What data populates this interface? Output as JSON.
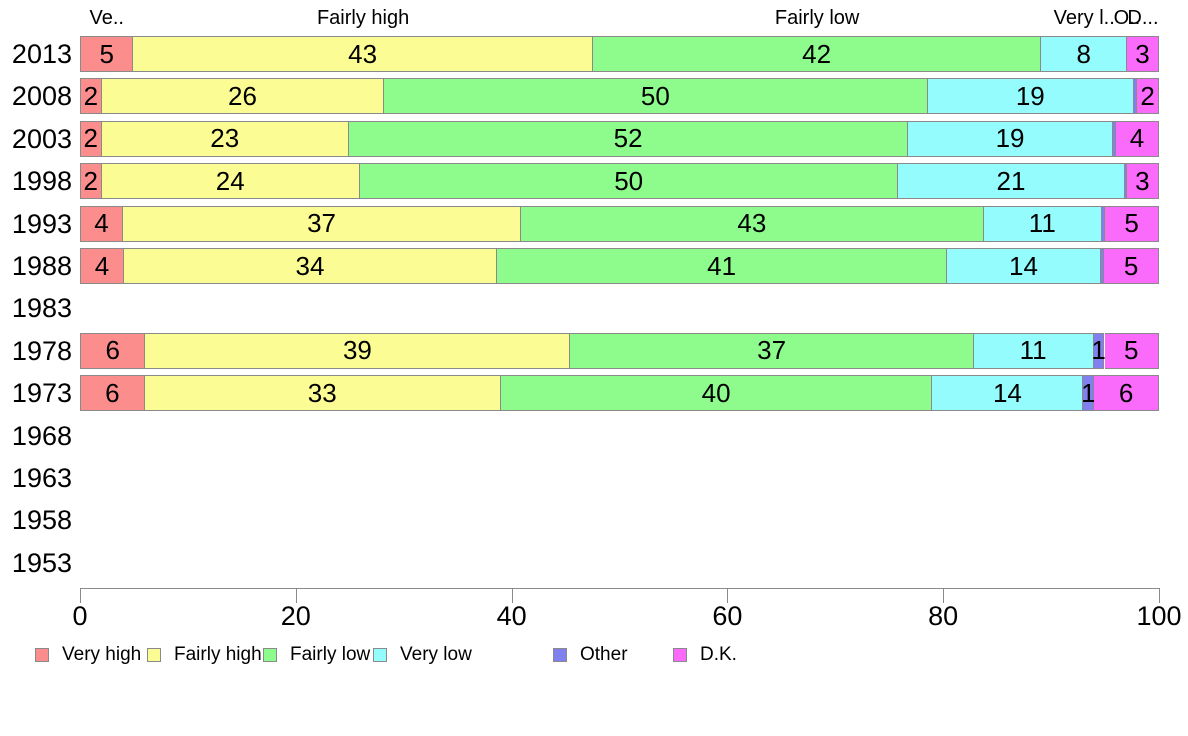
{
  "chart_data": {
    "type": "bar",
    "orientation": "horizontal",
    "stacked": true,
    "title": "",
    "xlabel": "",
    "ylabel": "",
    "x_axis": {
      "min": 0,
      "max": 100,
      "ticks": [
        "0",
        "20",
        "40",
        "60",
        "80",
        "100"
      ]
    },
    "column_header_labels": [
      "Ve..",
      "Fairly high",
      "Fairly low",
      "Very l..",
      "O..",
      "D..."
    ],
    "legend_position": "bottom",
    "legend": [
      {
        "label": "Very high",
        "color": "#FC8D8D"
      },
      {
        "label": "Fairly high",
        "color": "#FCFC94"
      },
      {
        "label": "Fairly low",
        "color": "#8DFC8D"
      },
      {
        "label": "Very low",
        "color": "#94FCFC"
      },
      {
        "label": "Other",
        "color": "#8080F0"
      },
      {
        "label": "D.K.",
        "color": "#FB6BFB"
      }
    ],
    "categories": [
      "2013",
      "2008",
      "2003",
      "1998",
      "1993",
      "1988",
      "1983",
      "1978",
      "1973",
      "1968",
      "1963",
      "1958",
      "1953"
    ],
    "rows": [
      {
        "year": "2013",
        "values": [
          5,
          43,
          42,
          8,
          0,
          3
        ],
        "labels": [
          "5",
          "43",
          "42",
          "8",
          "",
          "3"
        ]
      },
      {
        "year": "2008",
        "values": [
          2,
          26,
          50,
          19,
          0.3,
          2
        ],
        "labels": [
          "2",
          "26",
          "50",
          "19",
          "",
          "2"
        ]
      },
      {
        "year": "2003",
        "values": [
          2,
          23,
          52,
          19,
          0.3,
          4
        ],
        "labels": [
          "2",
          "23",
          "52",
          "19",
          "",
          "4"
        ]
      },
      {
        "year": "1998",
        "values": [
          2,
          24,
          50,
          21,
          0.2,
          3
        ],
        "labels": [
          "2",
          "24",
          "50",
          "21",
          "",
          "3"
        ]
      },
      {
        "year": "1993",
        "values": [
          4,
          37,
          43,
          11,
          0.3,
          5
        ],
        "labels": [
          "4",
          "37",
          "43",
          "11",
          "",
          "5"
        ]
      },
      {
        "year": "1988",
        "values": [
          4,
          34,
          41,
          14,
          0.3,
          5
        ],
        "labels": [
          "4",
          "34",
          "41",
          "14",
          "",
          "5"
        ]
      },
      {
        "year": "1983",
        "values": null,
        "labels": null
      },
      {
        "year": "1978",
        "values": [
          6,
          39,
          37,
          11,
          1,
          5
        ],
        "labels": [
          "6",
          "39",
          "37",
          "11",
          "1",
          "5"
        ]
      },
      {
        "year": "1973",
        "values": [
          6,
          33,
          40,
          14,
          1,
          6
        ],
        "labels": [
          "6",
          "33",
          "40",
          "14",
          "1",
          "6"
        ]
      },
      {
        "year": "1968",
        "values": null,
        "labels": null
      },
      {
        "year": "1963",
        "values": null,
        "labels": null
      },
      {
        "year": "1958",
        "values": null,
        "labels": null
      },
      {
        "year": "1953",
        "values": null,
        "labels": null
      }
    ]
  }
}
